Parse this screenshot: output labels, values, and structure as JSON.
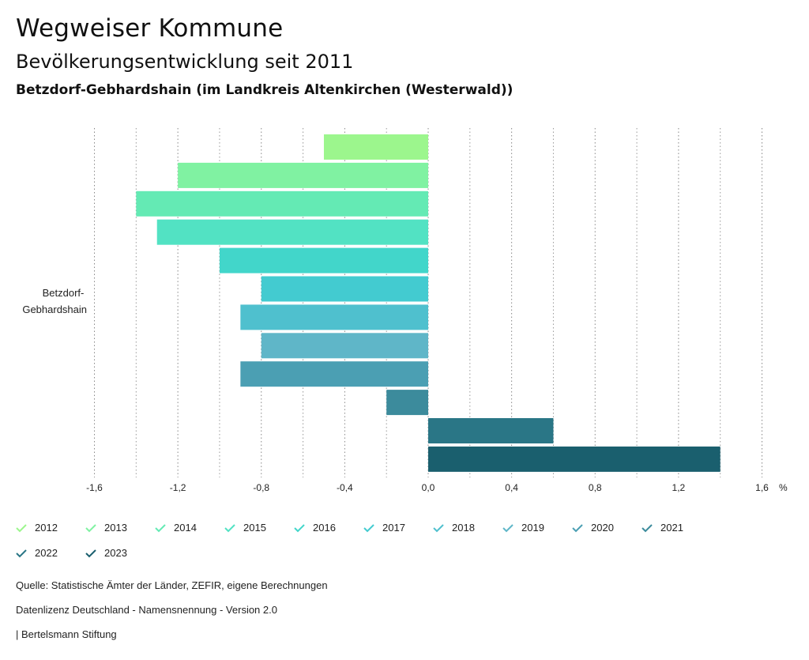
{
  "header": {
    "title": "Wegweiser Kommune",
    "subtitle": "Bevölkerungsentwicklung seit 2011",
    "region": "Betzdorf-Gebhardshain (im Landkreis Altenkirchen (Westerwald))"
  },
  "chart_data": {
    "type": "bar",
    "orientation": "horizontal",
    "categories": [
      "Betzdorf-Gebhardshain"
    ],
    "category_label_lines": [
      "Betzdorf-",
      "Gebhardshain"
    ],
    "series": [
      {
        "name": "2012",
        "values": [
          -0.5
        ],
        "color": "#9cf68d"
      },
      {
        "name": "2013",
        "values": [
          -1.2
        ],
        "color": "#80f2a2"
      },
      {
        "name": "2014",
        "values": [
          -1.4
        ],
        "color": "#64eab4"
      },
      {
        "name": "2015",
        "values": [
          -1.3
        ],
        "color": "#52e2c3"
      },
      {
        "name": "2016",
        "values": [
          -1.0
        ],
        "color": "#42d6ca"
      },
      {
        "name": "2017",
        "values": [
          -0.8
        ],
        "color": "#43cbd0"
      },
      {
        "name": "2018",
        "values": [
          -0.9
        ],
        "color": "#4fc0ce"
      },
      {
        "name": "2019",
        "values": [
          -0.8
        ],
        "color": "#5fb6c8"
      },
      {
        "name": "2020",
        "values": [
          -0.9
        ],
        "color": "#4b9fb3"
      },
      {
        "name": "2021",
        "values": [
          -0.2
        ],
        "color": "#3c8b9c"
      },
      {
        "name": "2022",
        "values": [
          0.6
        ],
        "color": "#2a7686"
      },
      {
        "name": "2023",
        "values": [
          1.4
        ],
        "color": "#1a5f6e"
      }
    ],
    "xlim": [
      -1.6,
      1.6
    ],
    "xticks": [
      -1.6,
      -1.2,
      -0.8,
      -0.4,
      0.0,
      0.4,
      0.8,
      1.2,
      1.6
    ],
    "xtick_labels": [
      "-1,6",
      "-1,2",
      "-0,8",
      "-0,4",
      "0,0",
      "0,4",
      "0,8",
      "1,2",
      "1,6"
    ],
    "unit": "%",
    "grid": "vertical dotted"
  },
  "footer": {
    "source": "Quelle: Statistische Ämter der Länder, ZEFIR, eigene Berechnungen",
    "license": "Datenlizenz Deutschland - Namensnennung - Version 2.0",
    "publisher": "| Bertelsmann Stiftung"
  }
}
